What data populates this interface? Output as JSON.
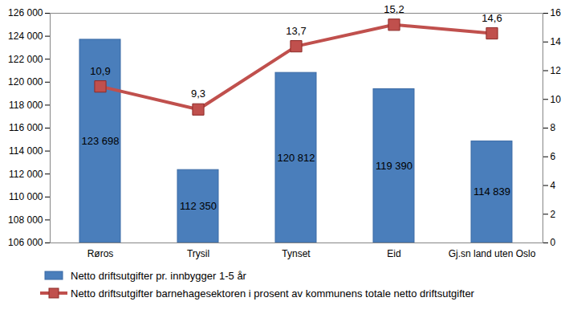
{
  "chart_data": {
    "type": "bar",
    "categories": [
      "Røros",
      "Trysil",
      "Tynset",
      "Eid",
      "Gj.sn land uten Oslo"
    ],
    "series": [
      {
        "name": "Netto driftsutgifter pr. innbygger 1-5 år",
        "type": "bar",
        "color": "#4a7ebb",
        "values": [
          123698,
          112350,
          120812,
          119390,
          114839
        ],
        "value_labels": [
          "123 698",
          "112 350",
          "120 812",
          "119 390",
          "114 839"
        ]
      },
      {
        "name": "Netto driftsutgifter barnehagesektoren i prosent av kommunens totale netto driftsutgifter",
        "type": "line",
        "axis": "y2",
        "color": "#c0504d",
        "marker": "square",
        "values": [
          10.9,
          9.3,
          13.7,
          15.2,
          14.6
        ],
        "value_labels": [
          "10,9",
          "9,3",
          "13,7",
          "15,2",
          "14,6"
        ]
      }
    ],
    "ylim": [
      106000,
      126000
    ],
    "yticks": [
      {
        "value": 106000,
        "label": "106 000"
      },
      {
        "value": 108000,
        "label": "108 000"
      },
      {
        "value": 110000,
        "label": "110 000"
      },
      {
        "value": 112000,
        "label": "112 000"
      },
      {
        "value": 114000,
        "label": "114 000"
      },
      {
        "value": 116000,
        "label": "116 000"
      },
      {
        "value": 118000,
        "label": "118 000"
      },
      {
        "value": 120000,
        "label": "120 000"
      },
      {
        "value": 122000,
        "label": "122 000"
      },
      {
        "value": 124000,
        "label": "124 000"
      },
      {
        "value": 126000,
        "label": "126 000"
      }
    ],
    "y2lim": [
      0,
      16
    ],
    "y2ticks": [
      0,
      2,
      4,
      6,
      8,
      10,
      12,
      14,
      16
    ],
    "grid": false,
    "data_labels": true,
    "legend": "bottom"
  }
}
